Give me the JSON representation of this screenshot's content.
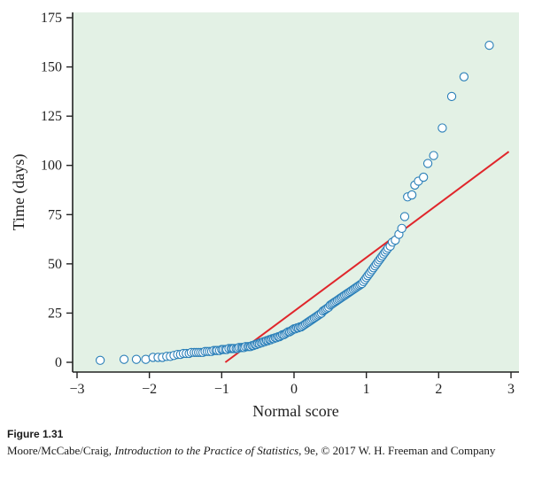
{
  "figure": {
    "label": "Figure 1.31",
    "credit_pre": "Moore/McCabe/Craig, ",
    "credit_title": "Introduction to the Practice of Statistics",
    "credit_post": ", 9e, © 2017 W. H. Freeman and Company"
  },
  "colors": {
    "plot_bg": "#e3f1e5",
    "point_stroke": "#2a7fb8",
    "line": "#e0262b",
    "axis": "#222222"
  },
  "chart_data": {
    "type": "scatter",
    "xlabel": "Normal score",
    "ylabel": "Time (days)",
    "xlim": [
      -3,
      3
    ],
    "ylim": [
      0,
      175
    ],
    "xticks": [
      -3,
      -2,
      -1,
      0,
      1,
      2,
      3
    ],
    "xtick_labels": [
      "−3",
      "−2",
      "−1",
      "0",
      "1",
      "2",
      "3"
    ],
    "yticks": [
      0,
      25,
      50,
      75,
      100,
      125,
      150,
      175
    ],
    "ytick_labels": [
      "0",
      "25",
      "50",
      "75",
      "100",
      "125",
      "150",
      "175"
    ],
    "grid": false,
    "reference_line": {
      "x": [
        -0.95,
        2.97
      ],
      "y": [
        0,
        107
      ]
    },
    "points": [
      [
        -2.68,
        1
      ],
      [
        -2.35,
        1.5
      ],
      [
        -2.18,
        1.5
      ],
      [
        -2.05,
        1.5
      ],
      [
        -1.95,
        2.5
      ],
      [
        -1.88,
        2.5
      ],
      [
        -1.82,
        2.5
      ],
      [
        -1.76,
        3
      ],
      [
        -1.71,
        3
      ],
      [
        -1.66,
        3.5
      ],
      [
        -1.61,
        4
      ],
      [
        -1.57,
        4
      ],
      [
        -1.53,
        4.5
      ],
      [
        -1.49,
        4.5
      ],
      [
        -1.45,
        4.5
      ],
      [
        -1.42,
        5
      ],
      [
        -1.38,
        5
      ],
      [
        -1.35,
        5
      ],
      [
        -1.32,
        5
      ],
      [
        -1.29,
        5
      ],
      [
        -1.26,
        5
      ],
      [
        -1.23,
        5.5
      ],
      [
        -1.2,
        5.5
      ],
      [
        -1.17,
        5.5
      ],
      [
        -1.14,
        5.5
      ],
      [
        -1.11,
        6
      ],
      [
        -1.08,
        6
      ],
      [
        -1.06,
        6
      ],
      [
        -1.03,
        6
      ],
      [
        -1.0,
        6.5
      ],
      [
        -0.98,
        6.5
      ],
      [
        -0.95,
        6.5
      ],
      [
        -0.93,
        6.5
      ],
      [
        -0.9,
        7
      ],
      [
        -0.87,
        7
      ],
      [
        -0.85,
        7
      ],
      [
        -0.83,
        7
      ],
      [
        -0.8,
        7
      ],
      [
        -0.78,
        7
      ],
      [
        -0.76,
        7.5
      ],
      [
        -0.73,
        7.5
      ],
      [
        -0.71,
        7.5
      ],
      [
        -0.69,
        7.5
      ],
      [
        -0.67,
        8
      ],
      [
        -0.64,
        8
      ],
      [
        -0.62,
        8
      ],
      [
        -0.6,
        8
      ],
      [
        -0.58,
        8.5
      ],
      [
        -0.56,
        8.5
      ],
      [
        -0.54,
        9
      ],
      [
        -0.52,
        9
      ],
      [
        -0.5,
        9.5
      ],
      [
        -0.48,
        9.5
      ],
      [
        -0.46,
        10
      ],
      [
        -0.44,
        10
      ],
      [
        -0.42,
        10.5
      ],
      [
        -0.4,
        10.5
      ],
      [
        -0.38,
        11
      ],
      [
        -0.36,
        11
      ],
      [
        -0.34,
        11.5
      ],
      [
        -0.32,
        11.5
      ],
      [
        -0.3,
        12
      ],
      [
        -0.28,
        12
      ],
      [
        -0.26,
        12.5
      ],
      [
        -0.24,
        12.5
      ],
      [
        -0.22,
        13
      ],
      [
        -0.2,
        13
      ],
      [
        -0.18,
        13.5
      ],
      [
        -0.16,
        14
      ],
      [
        -0.14,
        14
      ],
      [
        -0.12,
        14.5
      ],
      [
        -0.1,
        15
      ],
      [
        -0.08,
        15.5
      ],
      [
        -0.06,
        15.5
      ],
      [
        -0.04,
        16
      ],
      [
        -0.02,
        16.5
      ],
      [
        0.0,
        17
      ],
      [
        0.02,
        17
      ],
      [
        0.04,
        17.5
      ],
      [
        0.06,
        17.5
      ],
      [
        0.08,
        18
      ],
      [
        0.1,
        18
      ],
      [
        0.12,
        18.5
      ],
      [
        0.14,
        19
      ],
      [
        0.16,
        19.5
      ],
      [
        0.18,
        20
      ],
      [
        0.2,
        20.5
      ],
      [
        0.22,
        21
      ],
      [
        0.24,
        21.5
      ],
      [
        0.26,
        22
      ],
      [
        0.28,
        22.5
      ],
      [
        0.3,
        23
      ],
      [
        0.32,
        23.5
      ],
      [
        0.34,
        24
      ],
      [
        0.36,
        24.5
      ],
      [
        0.38,
        25
      ],
      [
        0.4,
        26
      ],
      [
        0.42,
        26.5
      ],
      [
        0.44,
        27
      ],
      [
        0.46,
        27.5
      ],
      [
        0.48,
        28
      ],
      [
        0.5,
        29
      ],
      [
        0.52,
        29.5
      ],
      [
        0.54,
        30
      ],
      [
        0.56,
        30.5
      ],
      [
        0.58,
        31
      ],
      [
        0.6,
        31.5
      ],
      [
        0.62,
        32
      ],
      [
        0.64,
        32.5
      ],
      [
        0.66,
        33
      ],
      [
        0.68,
        33.5
      ],
      [
        0.7,
        34
      ],
      [
        0.72,
        34.5
      ],
      [
        0.74,
        35
      ],
      [
        0.76,
        35.5
      ],
      [
        0.78,
        36
      ],
      [
        0.8,
        36.5
      ],
      [
        0.82,
        37
      ],
      [
        0.84,
        37.5
      ],
      [
        0.86,
        38
      ],
      [
        0.88,
        38.5
      ],
      [
        0.9,
        39
      ],
      [
        0.92,
        39.5
      ],
      [
        0.94,
        40
      ],
      [
        0.96,
        41
      ],
      [
        0.98,
        42
      ],
      [
        1.0,
        43
      ],
      [
        1.02,
        44
      ],
      [
        1.04,
        45
      ],
      [
        1.06,
        46
      ],
      [
        1.08,
        47
      ],
      [
        1.1,
        48
      ],
      [
        1.12,
        49
      ],
      [
        1.14,
        50
      ],
      [
        1.16,
        51
      ],
      [
        1.18,
        52
      ],
      [
        1.2,
        53
      ],
      [
        1.22,
        54
      ],
      [
        1.24,
        55
      ],
      [
        1.26,
        56
      ],
      [
        1.28,
        57
      ],
      [
        1.3,
        58
      ],
      [
        1.33,
        59
      ],
      [
        1.36,
        61
      ],
      [
        1.4,
        62
      ],
      [
        1.45,
        65
      ],
      [
        1.49,
        68
      ],
      [
        1.53,
        74
      ],
      [
        1.57,
        84
      ],
      [
        1.63,
        85
      ],
      [
        1.67,
        90
      ],
      [
        1.72,
        92
      ],
      [
        1.79,
        94
      ],
      [
        1.85,
        101
      ],
      [
        1.93,
        105
      ],
      [
        2.05,
        119
      ],
      [
        2.18,
        135
      ],
      [
        2.35,
        145
      ],
      [
        2.7,
        161
      ]
    ]
  }
}
